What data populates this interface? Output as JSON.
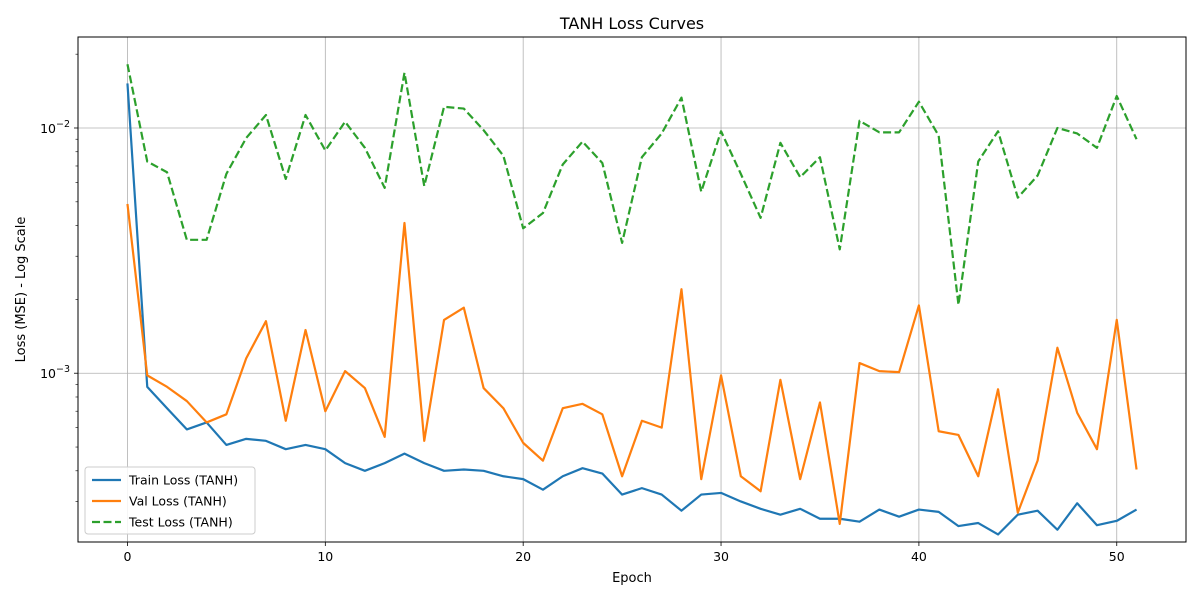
{
  "chart_data": {
    "type": "line",
    "title": "TANH Loss Curves",
    "xlabel": "Epoch",
    "ylabel": "Loss (MSE) - Log Scale",
    "yscale": "log",
    "xlim": [
      -2.5,
      53.5
    ],
    "ylim": [
      0.000205,
      0.0235
    ],
    "x_ticks": [
      0,
      10,
      20,
      30,
      40,
      50
    ],
    "y_ticks": [
      {
        "value": 0.001,
        "label": "10⁻³",
        "base": "10",
        "exp": "−3"
      },
      {
        "value": 0.01,
        "label": "10⁻²",
        "base": "10",
        "exp": "−2"
      }
    ],
    "grid": true,
    "legend_position": "lower-left",
    "x": [
      0,
      1,
      2,
      3,
      4,
      5,
      6,
      7,
      8,
      9,
      10,
      11,
      12,
      13,
      14,
      15,
      16,
      17,
      18,
      19,
      20,
      21,
      22,
      23,
      24,
      25,
      26,
      27,
      28,
      29,
      30,
      31,
      32,
      33,
      34,
      35,
      36,
      37,
      38,
      39,
      40,
      41,
      42,
      43,
      44,
      45,
      46,
      47,
      48,
      49,
      50,
      51
    ],
    "series": [
      {
        "name": "Train Loss (TANH)",
        "color": "#1f77b4",
        "dash": "solid",
        "values": [
          0.0152,
          0.00088,
          0.00072,
          0.00059,
          0.00063,
          0.00051,
          0.00054,
          0.00053,
          0.00049,
          0.00051,
          0.00049,
          0.00043,
          0.0004,
          0.00043,
          0.00047,
          0.00043,
          0.0004,
          0.000405,
          0.0004,
          0.00038,
          0.00037,
          0.000335,
          0.00038,
          0.00041,
          0.00039,
          0.00032,
          0.00034,
          0.00032,
          0.000275,
          0.00032,
          0.000325,
          0.0003,
          0.00028,
          0.000265,
          0.00028,
          0.000255,
          0.000255,
          0.000248,
          0.000278,
          0.00026,
          0.000278,
          0.000272,
          0.000238,
          0.000245,
          0.00022,
          0.000265,
          0.000275,
          0.00023,
          0.000295,
          0.00024,
          0.00025,
          0.000278
        ]
      },
      {
        "name": "Val Loss (TANH)",
        "color": "#ff7f0e",
        "dash": "solid",
        "values": [
          0.0049,
          0.00098,
          0.00088,
          0.00077,
          0.00063,
          0.00068,
          0.00115,
          0.00163,
          0.00064,
          0.0015,
          0.0007,
          0.00102,
          0.00087,
          0.00055,
          0.0041,
          0.00053,
          0.00165,
          0.00185,
          0.00087,
          0.00072,
          0.00052,
          0.00044,
          0.00072,
          0.00075,
          0.00068,
          0.00038,
          0.00064,
          0.0006,
          0.0022,
          0.00037,
          0.00098,
          0.00038,
          0.00033,
          0.00094,
          0.00037,
          0.00076,
          0.000243,
          0.0011,
          0.00102,
          0.00101,
          0.00189,
          0.00058,
          0.00056,
          0.00038,
          0.00086,
          0.00027,
          0.00044,
          0.00127,
          0.00069,
          0.00049,
          0.00165,
          0.000405
        ]
      },
      {
        "name": "Test Loss (TANH)",
        "color": "#2ca02c",
        "dash": "dashed",
        "values": [
          0.0182,
          0.0073,
          0.0066,
          0.0035,
          0.0035,
          0.0065,
          0.0091,
          0.0113,
          0.0062,
          0.0113,
          0.0081,
          0.0106,
          0.0083,
          0.0057,
          0.0168,
          0.0058,
          0.0122,
          0.012,
          0.0098,
          0.0077,
          0.0039,
          0.0045,
          0.0071,
          0.0088,
          0.0072,
          0.0034,
          0.0076,
          0.0095,
          0.0133,
          0.0055,
          0.0097,
          0.0065,
          0.0043,
          0.0087,
          0.0063,
          0.0076,
          0.0032,
          0.0107,
          0.0096,
          0.0096,
          0.0128,
          0.0093,
          0.0019,
          0.0073,
          0.0097,
          0.0052,
          0.0064,
          0.01,
          0.0095,
          0.0083,
          0.0135,
          0.009
        ]
      }
    ]
  }
}
